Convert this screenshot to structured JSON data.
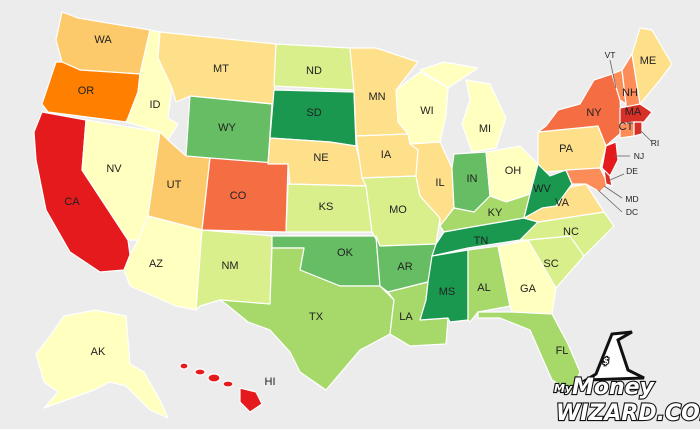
{
  "colors": {
    "dark_green": "#1a9850",
    "green": "#66bd63",
    "light_green": "#a6d96a",
    "pale_green": "#d9ef8b",
    "cream": "#ffffbf",
    "light_yellow": "#fee08b",
    "yellow_orange": "#fdca6b",
    "orange": "#f46d43",
    "dark_orange": "#fc8d59",
    "red": "#d73027",
    "bright_red": "#e41a1c",
    "strong_orange": "#ff7f00"
  },
  "labels": {
    "WA": "WA",
    "OR": "OR",
    "CA": "CA",
    "ID": "ID",
    "NV": "NV",
    "MT": "MT",
    "WY": "WY",
    "UT": "UT",
    "AZ": "AZ",
    "CO": "CO",
    "NM": "NM",
    "ND": "ND",
    "SD": "SD",
    "NE": "NE",
    "KS": "KS",
    "OK": "OK",
    "TX": "TX",
    "MN": "MN",
    "IA": "IA",
    "MO": "MO",
    "AR": "AR",
    "LA": "LA",
    "WI": "WI",
    "IL": "IL",
    "MI": "MI",
    "IN": "IN",
    "OH": "OH",
    "KY": "KY",
    "TN": "TN",
    "MS": "MS",
    "AL": "AL",
    "GA": "GA",
    "FL": "FL",
    "SC": "SC",
    "NC": "NC",
    "VA": "VA",
    "WV": "WV",
    "PA": "PA",
    "NY": "NY",
    "VT": "VT",
    "NH": "NH",
    "ME": "ME",
    "MA": "MA",
    "CT": "CT",
    "RI": "RI",
    "NJ": "NJ",
    "DE": "DE",
    "MD": "MD",
    "DC": "DC",
    "AK": "AK",
    "HI": "HI"
  },
  "logo": {
    "line1_prefix": "My",
    "line1_main": "Money",
    "line2": "WIZARD.COM"
  }
}
